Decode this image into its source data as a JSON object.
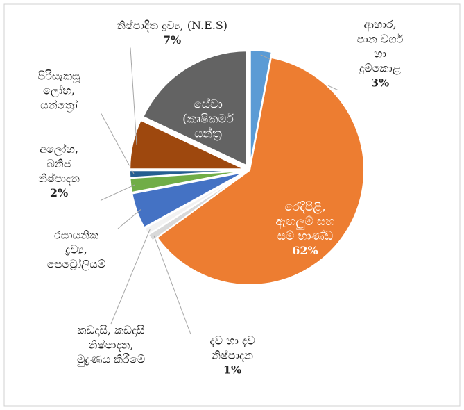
{
  "chart_data": {
    "type": "pie",
    "categories": [
      [
        "ආහාර,",
        "පාන වර්ග",
        "හා",
        "දුම්කොළ"
      ],
      [
        "රෙදිපිළි,",
        "ඇඟලුම් සහ",
        "සම් භාණ්ඩ"
      ],
      [
        "දැව හා දැව",
        "නිෂ්පාදන"
      ],
      [
        "කඩදාසි, කඩදාසි",
        "නිෂ්පාදන,",
        "මුද්‍රණය කිරීමේ"
      ],
      [
        "රසායනික",
        "ද්‍රව්‍ය,",
        "පෙට්‍රෝලියම්"
      ],
      [
        "අලෝහ,",
        "ඛනිජ",
        "නිෂ්පාදන"
      ],
      [
        "පිරිසැකසූ",
        "ලෝහ,",
        "යන්ත්‍රෝ"
      ],
      [
        "නිෂ්පාදිත ද්‍රව්‍ය, (N.E.S)"
      ],
      [
        "සේවා",
        "(කෘෂිකර්ම",
        "යන්ත්‍ර"
      ]
    ],
    "values": [
      3,
      62,
      1,
      1,
      5,
      2,
      1,
      7,
      18
    ],
    "value_labels": [
      "3%",
      "62%",
      "1%",
      null,
      null,
      "2%",
      null,
      "7%",
      null
    ],
    "colors": [
      "#5b9bd5",
      "#ed7d31",
      "#d9d9d9",
      "#f2f2f2",
      "#4472c4",
      "#70ad47",
      "#255e91",
      "#9e480e",
      "#636363"
    ]
  }
}
